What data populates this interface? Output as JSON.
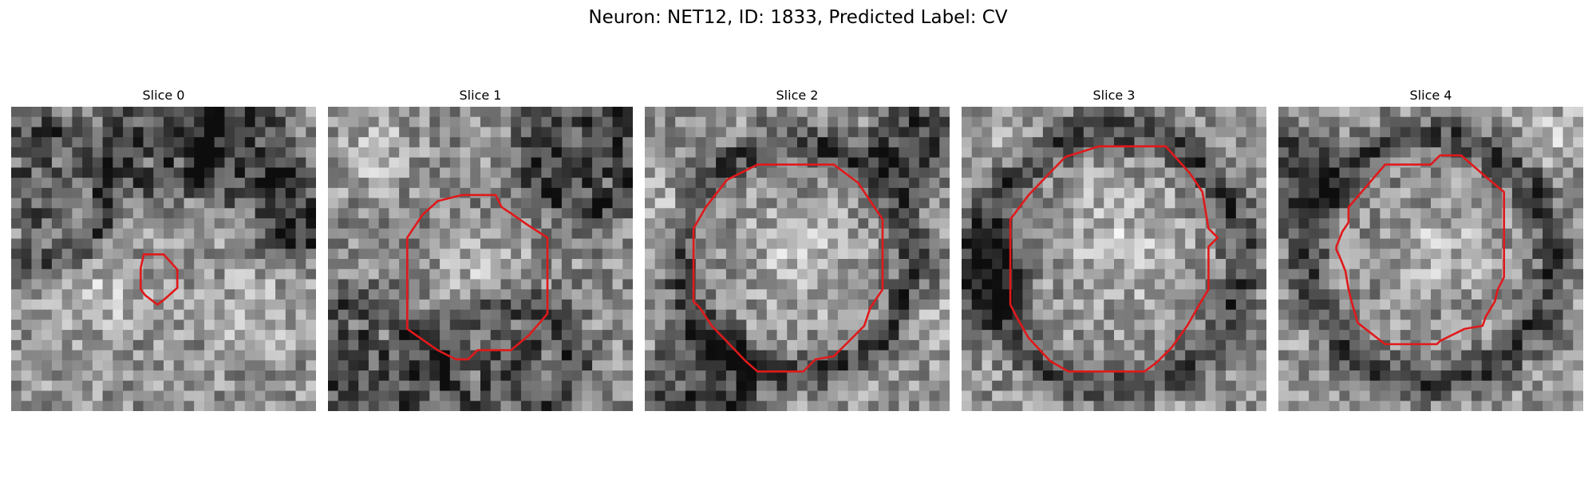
{
  "figure": {
    "title": "Neuron: NET12, ID: 1833, Predicted Label: CV"
  },
  "contour_color": "#e0191b",
  "slices": [
    {
      "title": "Slice 0",
      "seed": 11,
      "base": 0.58,
      "dark_blobs": [
        [
          0.08,
          0.3,
          0.22
        ],
        [
          0.5,
          0.1,
          0.15
        ],
        [
          0.75,
          0.15,
          0.12
        ],
        [
          0.95,
          0.35,
          0.1
        ]
      ],
      "light_blobs": [
        [
          0.3,
          0.6,
          0.2
        ],
        [
          0.8,
          0.7,
          0.2
        ]
      ],
      "contour": [
        [
          0.435,
          0.485
        ],
        [
          0.5,
          0.485
        ],
        [
          0.545,
          0.535
        ],
        [
          0.545,
          0.595
        ],
        [
          0.5,
          0.635
        ],
        [
          0.48,
          0.65
        ],
        [
          0.44,
          0.62
        ],
        [
          0.425,
          0.6
        ],
        [
          0.425,
          0.53
        ]
      ]
    },
    {
      "title": "Slice 1",
      "seed": 23,
      "base": 0.55,
      "dark_blobs": [
        [
          0.85,
          0.15,
          0.18
        ],
        [
          0.1,
          0.85,
          0.2
        ],
        [
          0.6,
          0.85,
          0.2
        ]
      ],
      "light_blobs": [
        [
          0.15,
          0.15,
          0.2
        ],
        [
          0.5,
          0.55,
          0.22
        ]
      ],
      "contour": [
        [
          0.44,
          0.29
        ],
        [
          0.55,
          0.29
        ],
        [
          0.57,
          0.33
        ],
        [
          0.6,
          0.35
        ],
        [
          0.65,
          0.385
        ],
        [
          0.72,
          0.43
        ],
        [
          0.72,
          0.68
        ],
        [
          0.66,
          0.75
        ],
        [
          0.6,
          0.8
        ],
        [
          0.49,
          0.8
        ],
        [
          0.46,
          0.83
        ],
        [
          0.42,
          0.83
        ],
        [
          0.36,
          0.8
        ],
        [
          0.26,
          0.73
        ],
        [
          0.26,
          0.43
        ],
        [
          0.31,
          0.355
        ],
        [
          0.36,
          0.31
        ]
      ]
    },
    {
      "title": "Slice 2",
      "seed": 37,
      "base": 0.58,
      "dark_blobs": [
        [
          0.5,
          0.5,
          0.38
        ],
        [
          0.9,
          0.1,
          0.1
        ],
        [
          0.2,
          0.9,
          0.12
        ]
      ],
      "light_blobs": [
        [
          0.5,
          0.5,
          0.24
        ],
        [
          0.08,
          0.35,
          0.15
        ],
        [
          0.95,
          0.7,
          0.12
        ],
        [
          0.15,
          0.85,
          0.1
        ]
      ],
      "contour": [
        [
          0.37,
          0.19
        ],
        [
          0.62,
          0.19
        ],
        [
          0.7,
          0.25
        ],
        [
          0.76,
          0.34
        ],
        [
          0.78,
          0.37
        ],
        [
          0.78,
          0.6
        ],
        [
          0.74,
          0.66
        ],
        [
          0.72,
          0.72
        ],
        [
          0.66,
          0.78
        ],
        [
          0.62,
          0.82
        ],
        [
          0.56,
          0.83
        ],
        [
          0.52,
          0.87
        ],
        [
          0.37,
          0.87
        ],
        [
          0.33,
          0.835
        ],
        [
          0.22,
          0.72
        ],
        [
          0.18,
          0.66
        ],
        [
          0.16,
          0.64
        ],
        [
          0.16,
          0.4
        ],
        [
          0.2,
          0.33
        ],
        [
          0.27,
          0.24
        ]
      ]
    },
    {
      "title": "Slice 3",
      "seed": 53,
      "base": 0.58,
      "dark_blobs": [
        [
          0.5,
          0.5,
          0.42
        ],
        [
          0.05,
          0.55,
          0.12
        ]
      ],
      "light_blobs": [
        [
          0.52,
          0.45,
          0.28
        ],
        [
          0.15,
          0.1,
          0.15
        ]
      ],
      "contour": [
        [
          0.34,
          0.165
        ],
        [
          0.45,
          0.13
        ],
        [
          0.67,
          0.13
        ],
        [
          0.75,
          0.22
        ],
        [
          0.79,
          0.28
        ],
        [
          0.81,
          0.4
        ],
        [
          0.84,
          0.43
        ],
        [
          0.81,
          0.46
        ],
        [
          0.81,
          0.6
        ],
        [
          0.78,
          0.65
        ],
        [
          0.74,
          0.72
        ],
        [
          0.69,
          0.79
        ],
        [
          0.64,
          0.84
        ],
        [
          0.6,
          0.87
        ],
        [
          0.35,
          0.87
        ],
        [
          0.29,
          0.835
        ],
        [
          0.22,
          0.76
        ],
        [
          0.18,
          0.69
        ],
        [
          0.16,
          0.65
        ],
        [
          0.16,
          0.37
        ],
        [
          0.22,
          0.29
        ]
      ]
    },
    {
      "title": "Slice 4",
      "seed": 71,
      "base": 0.58,
      "dark_blobs": [
        [
          0.5,
          0.5,
          0.4
        ],
        [
          0.03,
          0.25,
          0.1
        ]
      ],
      "light_blobs": [
        [
          0.52,
          0.48,
          0.2
        ],
        [
          0.9,
          0.1,
          0.15
        ]
      ],
      "contour": [
        [
          0.35,
          0.19
        ],
        [
          0.5,
          0.19
        ],
        [
          0.53,
          0.16
        ],
        [
          0.6,
          0.16
        ],
        [
          0.68,
          0.23
        ],
        [
          0.74,
          0.28
        ],
        [
          0.74,
          0.56
        ],
        [
          0.72,
          0.6
        ],
        [
          0.71,
          0.64
        ],
        [
          0.68,
          0.69
        ],
        [
          0.67,
          0.72
        ],
        [
          0.61,
          0.73
        ],
        [
          0.57,
          0.75
        ],
        [
          0.53,
          0.77
        ],
        [
          0.52,
          0.78
        ],
        [
          0.35,
          0.78
        ],
        [
          0.26,
          0.71
        ],
        [
          0.24,
          0.64
        ],
        [
          0.23,
          0.6
        ],
        [
          0.22,
          0.54
        ],
        [
          0.2,
          0.49
        ],
        [
          0.19,
          0.47
        ],
        [
          0.19,
          0.46
        ],
        [
          0.21,
          0.41
        ],
        [
          0.23,
          0.38
        ],
        [
          0.23,
          0.33
        ]
      ]
    }
  ]
}
